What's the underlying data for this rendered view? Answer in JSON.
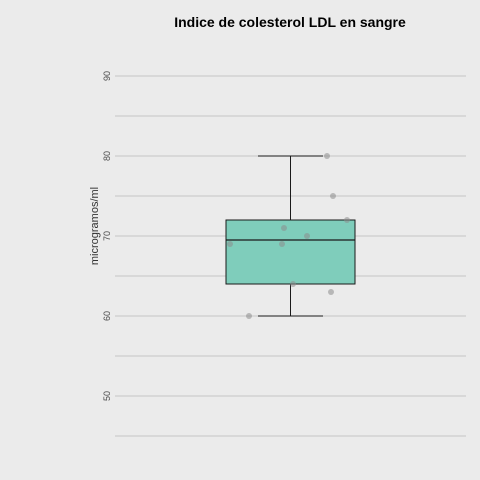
{
  "chart_data": {
    "type": "box",
    "title": "Indice de colesterol LDL en sangre",
    "xlabel": "",
    "ylabel": "microgramos/ml",
    "ylim": [
      45,
      95
    ],
    "yticks": [
      50,
      60,
      70,
      80,
      90
    ],
    "grid": true,
    "legend": "none",
    "box": {
      "whisker_low": 60,
      "q1": 64,
      "median": 69.5,
      "q3": 72,
      "whisker_high": 80
    },
    "points": [
      60,
      64,
      63,
      69,
      69,
      70,
      71,
      72,
      75,
      80
    ],
    "colors": {
      "background": "#ebebeb",
      "grid": "#c4c4c4",
      "box_fill": "#7fcdbb",
      "box_stroke": "#1a1a1a",
      "points": "#8c8c8c"
    }
  }
}
